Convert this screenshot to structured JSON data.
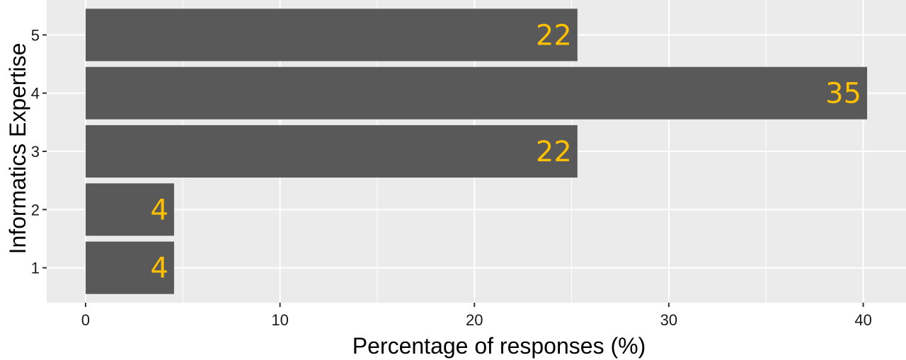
{
  "colors": {
    "panel": "#EBEBEB",
    "grid": "#FFFFFF",
    "bar": "#595959",
    "label": "#FFC000",
    "tick": "#333333"
  },
  "chart_data": {
    "type": "bar",
    "orientation": "horizontal",
    "xlabel": "Percentage of responses (%)",
    "ylabel": "Informatics Expertise",
    "categories": [
      "1",
      "2",
      "3",
      "4",
      "5"
    ],
    "values": [
      4.55,
      4.55,
      25.3,
      40.2,
      25.3
    ],
    "data_labels": [
      "4",
      "4",
      "22",
      "35",
      "22"
    ],
    "xlim": [
      -2,
      42.2
    ],
    "xticks": [
      0,
      10,
      20,
      30,
      40
    ],
    "xtick_labels": [
      "0",
      "10",
      "20",
      "30",
      "40"
    ],
    "grid": true,
    "legend": "none"
  }
}
